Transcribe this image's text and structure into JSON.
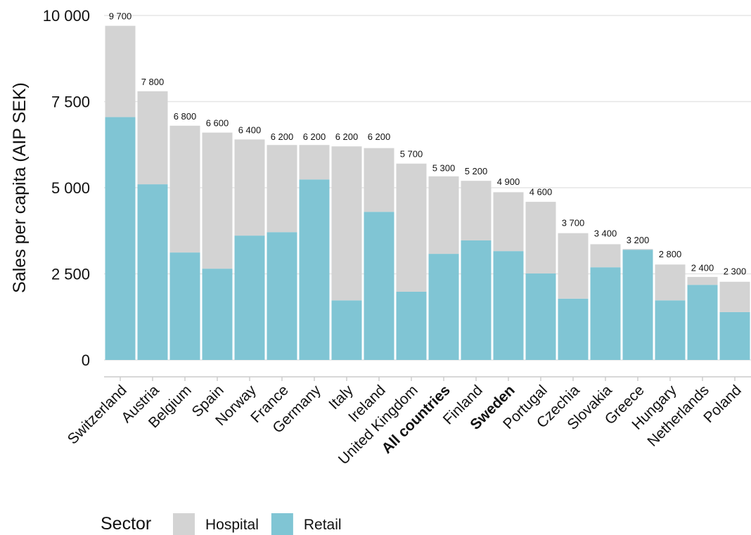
{
  "chart_data": {
    "type": "stacked-bar",
    "y_label": "Sales per capita (AIP SEK)",
    "categories": [
      "Switzerland",
      "Austria",
      "Belgium",
      "Spain",
      "Norway",
      "France",
      "Germany",
      "Italy",
      "Ireland",
      "United Kingdom",
      "All countries",
      "Finland",
      "Sweden",
      "Portugal",
      "Czechia",
      "Slovakia",
      "Greece",
      "Hungary",
      "Netherlands",
      "Poland"
    ],
    "bold_categories": [
      "All countries",
      "Sweden"
    ],
    "series": [
      {
        "name": "Retail",
        "color": "#80c5d4",
        "values": [
          7050,
          5100,
          3120,
          2650,
          3610,
          3710,
          5240,
          1730,
          4300,
          1980,
          3080,
          3470,
          3160,
          2510,
          1780,
          2690,
          3200,
          1730,
          2180,
          1390
        ]
      },
      {
        "name": "Hospital",
        "color": "#d3d3d3",
        "values": [
          2650,
          2700,
          3680,
          3950,
          2790,
          2530,
          1000,
          4470,
          1850,
          3720,
          2250,
          1730,
          1710,
          2080,
          1900,
          670,
          20,
          1040,
          230,
          880
        ]
      }
    ],
    "totals": {
      "values": [
        9700,
        7800,
        6800,
        6600,
        6400,
        6200,
        6200,
        6200,
        6200,
        5700,
        5300,
        5200,
        4900,
        4600,
        3700,
        3400,
        3200,
        2800,
        2400,
        2300
      ],
      "value_labels": [
        "9 700",
        "7 800",
        "6 800",
        "6 600",
        "6 400",
        "6 200",
        "6 200",
        "6 200",
        "6 200",
        "5 700",
        "5 300",
        "5 200",
        "4 900",
        "4 600",
        "3 700",
        "3 400",
        "3 200",
        "2 800",
        "2 400",
        "2 300"
      ]
    },
    "legend_title": "Sector",
    "legend_order": [
      1,
      0
    ],
    "legend_position": "bottom",
    "ylim": [
      0,
      10000
    ],
    "yticks": [
      0,
      {
        "value": 2500,
        "label": "2 500"
      },
      {
        "value": 5000,
        "label": "5 000"
      },
      {
        "value": 7500,
        "label": "7 500"
      },
      {
        "value": 10000,
        "label": "10 000"
      }
    ],
    "grid": true
  }
}
